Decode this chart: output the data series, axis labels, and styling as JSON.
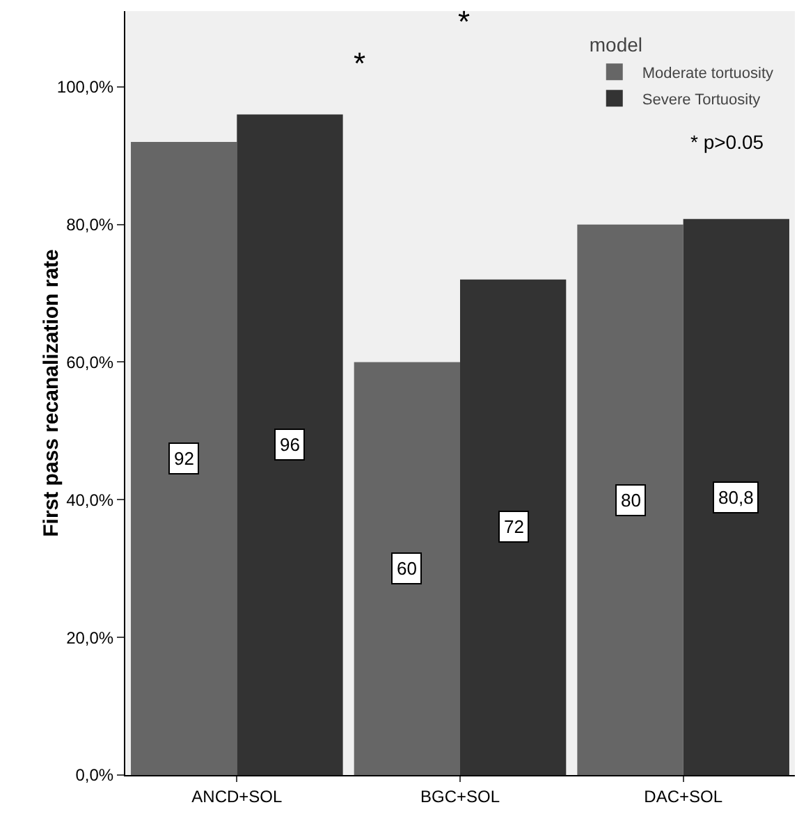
{
  "chart_data": {
    "type": "bar",
    "ylabel": "First pass recanalization rate",
    "legend_title": "model",
    "categories": [
      "ANCD+SOL",
      "BGC+SOL",
      "DAC+SOL"
    ],
    "series": [
      {
        "name": "Moderate tortuosity",
        "color": "#666666",
        "values": [
          92,
          60,
          80
        ],
        "value_labels": [
          "92",
          "60",
          "80"
        ]
      },
      {
        "name": "Severe Tortuosity",
        "color": "#333333",
        "values": [
          96,
          72,
          80.8
        ],
        "value_labels": [
          "96",
          "72",
          "80,8"
        ]
      }
    ],
    "ylim": [
      0,
      111
    ],
    "yticks": [
      {
        "value": 0,
        "label": "0,0%"
      },
      {
        "value": 20,
        "label": "20,0%"
      },
      {
        "value": 40,
        "label": "40,0%"
      },
      {
        "value": 60,
        "label": "60,0%"
      },
      {
        "value": 80,
        "label": "80,0%"
      },
      {
        "value": 100,
        "label": "100,0%"
      }
    ],
    "grid": false,
    "legend": "top right",
    "annotations": [
      "*",
      "*",
      "* p>0.05"
    ]
  }
}
